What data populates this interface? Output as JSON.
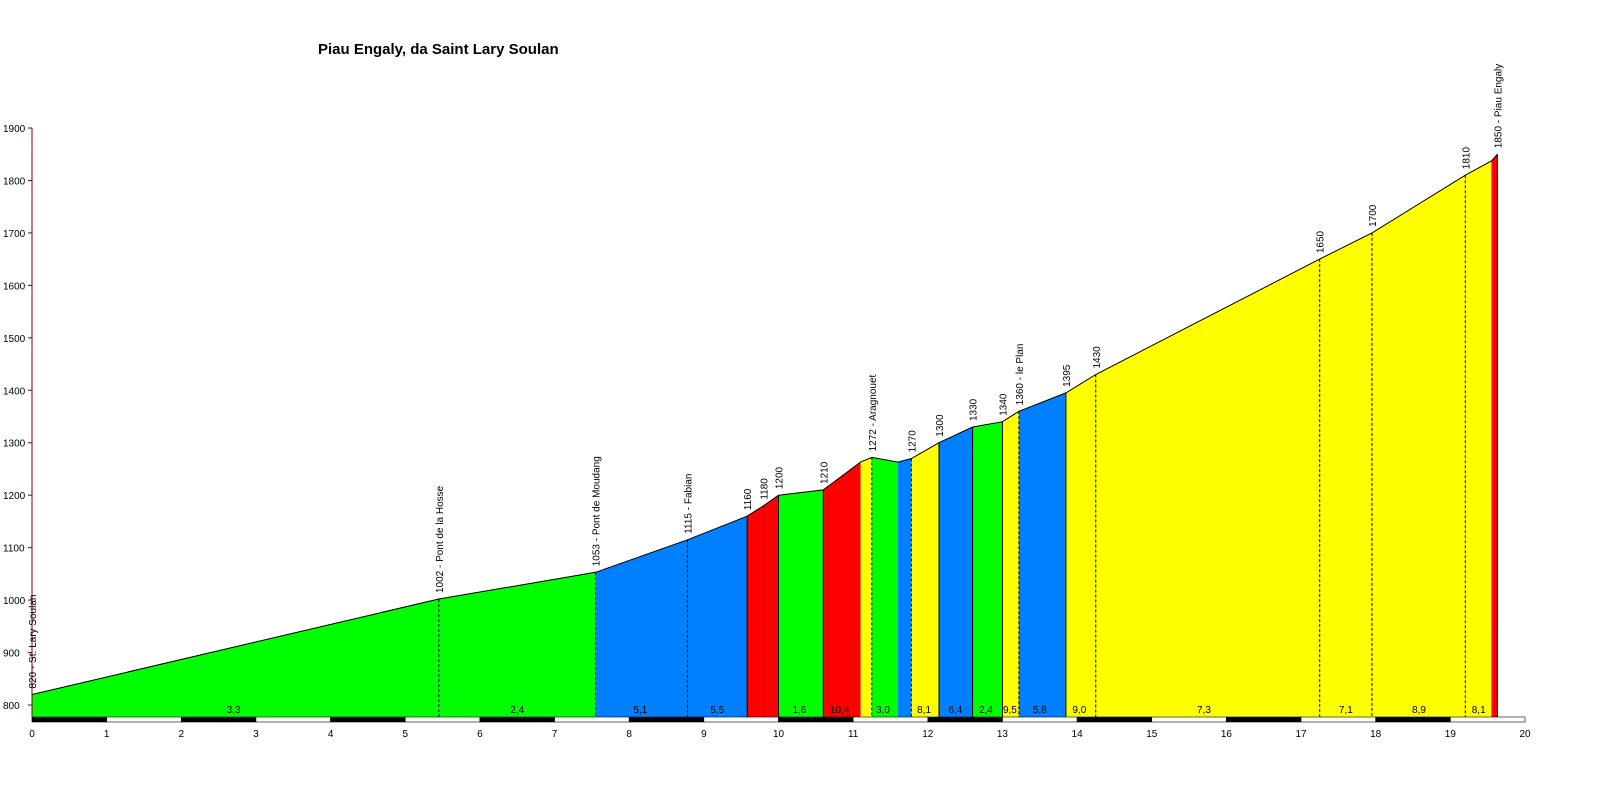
{
  "chart_data": {
    "type": "area",
    "title": "Piau Engaly, da Saint Lary Soulan",
    "xlabel": "",
    "ylabel": "",
    "xlim": [
      0,
      20
    ],
    "ylim": [
      780,
      1900
    ],
    "x_ticks": [
      "0",
      "1",
      "2",
      "3",
      "4",
      "5",
      "6",
      "7",
      "8",
      "9",
      "10",
      "11",
      "12",
      "13",
      "14",
      "15",
      "16",
      "17",
      "18",
      "19",
      "20"
    ],
    "y_ticks": [
      "800",
      "900",
      "1000",
      "1100",
      "1200",
      "1300",
      "1400",
      "1500",
      "1600",
      "1700",
      "1800",
      "1900"
    ],
    "grid": false,
    "profile": [
      {
        "x": 0,
        "y": 820
      },
      {
        "x": 5.45,
        "y": 1002
      },
      {
        "x": 7.55,
        "y": 1053
      },
      {
        "x": 8.78,
        "y": 1115
      },
      {
        "x": 9.58,
        "y": 1160
      },
      {
        "x": 9.8,
        "y": 1180
      },
      {
        "x": 10.0,
        "y": 1200
      },
      {
        "x": 10.6,
        "y": 1210
      },
      {
        "x": 11.1,
        "y": 1263
      },
      {
        "x": 11.25,
        "y": 1272
      },
      {
        "x": 11.6,
        "y": 1263
      },
      {
        "x": 11.78,
        "y": 1270
      },
      {
        "x": 12.15,
        "y": 1300
      },
      {
        "x": 12.6,
        "y": 1330
      },
      {
        "x": 13.0,
        "y": 1340
      },
      {
        "x": 13.22,
        "y": 1360
      },
      {
        "x": 13.85,
        "y": 1395
      },
      {
        "x": 14.25,
        "y": 1430
      },
      {
        "x": 17.25,
        "y": 1650
      },
      {
        "x": 17.95,
        "y": 1700
      },
      {
        "x": 19.2,
        "y": 1810
      },
      {
        "x": 19.55,
        "y": 1837
      },
      {
        "x": 19.63,
        "y": 1850
      }
    ],
    "segments": [
      {
        "x0": 0,
        "x1": 7.55,
        "color": "#00ff00",
        "gradients": [
          {
            "x": 2.7,
            "text": "3,3"
          },
          {
            "x": 6.5,
            "text": "2,4"
          }
        ]
      },
      {
        "x0": 7.55,
        "x1": 9.58,
        "color": "#0080ff",
        "gradients": [
          {
            "x": 8.15,
            "text": "5,1"
          },
          {
            "x": 9.18,
            "text": "5,5"
          }
        ]
      },
      {
        "x0": 9.58,
        "x1": 10.0,
        "color": "#ff0000",
        "gradients": []
      },
      {
        "x0": 10.0,
        "x1": 10.6,
        "color": "#00ff00",
        "gradients": [
          {
            "x": 10.28,
            "text": "1,6"
          }
        ]
      },
      {
        "x0": 10.6,
        "x1": 11.1,
        "color": "#ff0000",
        "gradients": [
          {
            "x": 10.82,
            "text": "10,4"
          }
        ]
      },
      {
        "x0": 11.1,
        "x1": 11.25,
        "color": "#ffff00",
        "gradients": []
      },
      {
        "x0": 11.25,
        "x1": 11.6,
        "color": "#00ff00",
        "gradients": [
          {
            "x": 11.4,
            "text": "3,0"
          }
        ]
      },
      {
        "x0": 11.6,
        "x1": 11.78,
        "color": "#0080ff",
        "gradients": []
      },
      {
        "x0": 11.78,
        "x1": 12.15,
        "color": "#ffff00",
        "gradients": [
          {
            "x": 11.95,
            "text": "8,1"
          }
        ]
      },
      {
        "x0": 12.15,
        "x1": 12.6,
        "color": "#0080ff",
        "gradients": [
          {
            "x": 12.37,
            "text": "6,4"
          }
        ]
      },
      {
        "x0": 12.6,
        "x1": 13.0,
        "color": "#00ff00",
        "gradients": [
          {
            "x": 12.78,
            "text": "2,4"
          }
        ]
      },
      {
        "x0": 13.0,
        "x1": 13.22,
        "color": "#ffff00",
        "gradients": [
          {
            "x": 13.1,
            "text": "9,5"
          }
        ]
      },
      {
        "x0": 13.22,
        "x1": 13.85,
        "color": "#0080ff",
        "gradients": [
          {
            "x": 13.5,
            "text": "5,8"
          }
        ]
      },
      {
        "x0": 13.85,
        "x1": 19.55,
        "color": "#ffff00",
        "gradients": [
          {
            "x": 14.03,
            "text": "9,0"
          },
          {
            "x": 15.7,
            "text": "7,3"
          },
          {
            "x": 17.6,
            "text": "7,1"
          },
          {
            "x": 18.58,
            "text": "8,9"
          },
          {
            "x": 19.38,
            "text": "8,1"
          }
        ]
      },
      {
        "x0": 19.55,
        "x1": 19.63,
        "color": "#ff0000",
        "gradients": []
      }
    ],
    "markers": [
      {
        "x": 0,
        "y": 820,
        "text": "820 - St. Lary Soulan",
        "dashed": false
      },
      {
        "x": 5.45,
        "y": 1002,
        "text": "1002 - Pont de la Hosse",
        "dashed": true
      },
      {
        "x": 7.55,
        "y": 1053,
        "text": "1053 - Pont de Moudang",
        "dashed": true
      },
      {
        "x": 8.78,
        "y": 1115,
        "text": "1115 - Fabian",
        "dashed": true
      },
      {
        "x": 9.58,
        "y": 1160,
        "text": "1160",
        "dashed": false
      },
      {
        "x": 9.8,
        "y": 1180,
        "text": "1180",
        "dashed": true
      },
      {
        "x": 10.0,
        "y": 1200,
        "text": "1200",
        "dashed": false
      },
      {
        "x": 10.6,
        "y": 1210,
        "text": "1210",
        "dashed": false
      },
      {
        "x": 11.25,
        "y": 1272,
        "text": "1272 - Aragnouet",
        "dashed": true
      },
      {
        "x": 11.78,
        "y": 1270,
        "text": "1270",
        "dashed": true
      },
      {
        "x": 12.15,
        "y": 1300,
        "text": "1300",
        "dashed": false
      },
      {
        "x": 12.6,
        "y": 1330,
        "text": "1330",
        "dashed": false
      },
      {
        "x": 13.0,
        "y": 1340,
        "text": "1340",
        "dashed": false
      },
      {
        "x": 13.22,
        "y": 1360,
        "text": "1360 - le Plan",
        "dashed": true
      },
      {
        "x": 13.85,
        "y": 1395,
        "text": "1395",
        "dashed": false
      },
      {
        "x": 14.25,
        "y": 1430,
        "text": "1430",
        "dashed": true
      },
      {
        "x": 17.25,
        "y": 1650,
        "text": "1650",
        "dashed": true
      },
      {
        "x": 17.95,
        "y": 1700,
        "text": "1700",
        "dashed": true
      },
      {
        "x": 19.2,
        "y": 1810,
        "text": "1810",
        "dashed": true
      },
      {
        "x": 19.63,
        "y": 1850,
        "text": "1850 - Piau Engaly",
        "dashed": false
      }
    ],
    "colors": {
      "green": "#00ff00",
      "blue": "#0080ff",
      "red": "#ff0000",
      "yellow": "#ffff00",
      "axis": "#800000"
    }
  }
}
